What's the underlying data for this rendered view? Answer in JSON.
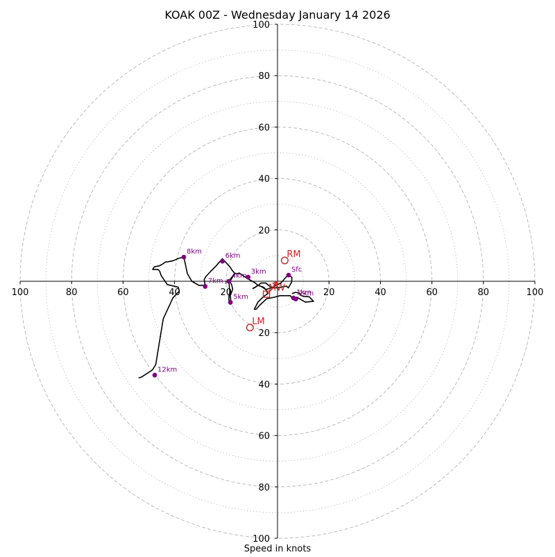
{
  "chart_data": {
    "type": "hodograph",
    "title": "KOAK 00Z - Wednesday January 14 2026",
    "xlabel": "Speed in knots",
    "ylabel": "",
    "range": [
      -100,
      100
    ],
    "ring_major": [
      20,
      40,
      60,
      80,
      100
    ],
    "ring_minor": [
      10,
      30,
      50,
      70,
      90
    ],
    "x_tick_values": [
      -100,
      -80,
      -60,
      -40,
      -20,
      20,
      40,
      60,
      80,
      100
    ],
    "x_tick_labels": [
      "100",
      "80",
      "60",
      "40",
      "20",
      "20",
      "40",
      "60",
      "80",
      "100"
    ],
    "y_tick_values": [
      100,
      80,
      60,
      40,
      20,
      -20,
      -40,
      -60,
      -80,
      -100
    ],
    "y_tick_labels": [
      "100",
      "80",
      "60",
      "40",
      "20",
      "20",
      "40",
      "60",
      "80",
      "100"
    ],
    "grid": "dashed rings",
    "trace_color": "#000000",
    "height_color": "#800080",
    "storm_color": "#cc2222",
    "ring_color": "#bbbbbb",
    "trace": [
      [
        5.6,
        -4.8
      ],
      [
        7.1,
        -4.3
      ],
      [
        8.6,
        -4.6
      ],
      [
        9.1,
        -5.5
      ],
      [
        10.2,
        -5.9
      ],
      [
        12.3,
        -6.0
      ],
      [
        14,
        -7.8
      ],
      [
        10.8,
        -8.1
      ],
      [
        7.5,
        -6.2
      ],
      [
        5.5,
        -6.4
      ],
      [
        5.0,
        -5.6
      ],
      [
        2.8,
        -5.6
      ],
      [
        1.0,
        -5.6
      ],
      [
        -1.2,
        -6.2
      ],
      [
        -4.2,
        -6.8
      ],
      [
        -5.6,
        -8.1
      ],
      [
        -6.8,
        -9.2
      ],
      [
        -8.3,
        -10.9
      ],
      [
        -9.0,
        -10.9
      ],
      [
        -7.6,
        -8.1
      ],
      [
        -5.5,
        -6.0
      ],
      [
        -3.8,
        -4.8
      ],
      [
        -4.5,
        -3.2
      ],
      [
        -5.4,
        -2.3
      ],
      [
        -7.8,
        -1.6
      ],
      [
        -8.5,
        -2.3
      ],
      [
        -9.6,
        -2.8
      ],
      [
        -7.5,
        -1.6
      ],
      [
        -6.4,
        -0.7
      ],
      [
        -4.5,
        -0.7
      ],
      [
        -3.0,
        -2.0
      ],
      [
        -1.3,
        -2.6
      ],
      [
        1.0,
        -2.4
      ],
      [
        3.5,
        -1.9
      ],
      [
        4.2,
        -2.6
      ],
      [
        5.5,
        -0.3
      ],
      [
        5.6,
        1.5
      ],
      [
        4.3,
        2.4
      ],
      [
        3.3,
        1.6
      ],
      [
        1.3,
        -0.7
      ],
      [
        -0.5,
        -1.5
      ],
      [
        -2.5,
        -2.6
      ],
      [
        -4.5,
        -3.2
      ],
      [
        -6.4,
        -2.0
      ],
      [
        -7.6,
        -1.6
      ],
      [
        -8.6,
        -0.7
      ],
      [
        -11.2,
        0.8
      ],
      [
        -12.5,
        1.6
      ],
      [
        -14.9,
        3.2
      ],
      [
        -15.8,
        2.8
      ],
      [
        -16.7,
        3.2
      ],
      [
        -17.3,
        1.9
      ],
      [
        -18.1,
        0.6
      ],
      [
        -18.3,
        -0.4
      ],
      [
        -17.8,
        -1.4
      ],
      [
        -17.4,
        -3.1
      ],
      [
        -18.3,
        -5.5
      ],
      [
        -18.1,
        -8.0
      ],
      [
        -18.3,
        -8.9
      ],
      [
        -18.9,
        -7.4
      ],
      [
        -18.8,
        -5.6
      ],
      [
        -18.5,
        -4.2
      ],
      [
        -18.7,
        -2.4
      ],
      [
        -18.8,
        -1.0
      ],
      [
        -18.9,
        0.0
      ],
      [
        -17.8,
        1.5
      ],
      [
        -16.5,
        3.0
      ],
      [
        -17.5,
        4.1
      ],
      [
        -18.5,
        5.6
      ],
      [
        -19.5,
        6.7
      ],
      [
        -21.4,
        8.8
      ],
      [
        -22.8,
        7.2
      ],
      [
        -24.2,
        5.6
      ],
      [
        -25.9,
        3.9
      ],
      [
        -27.8,
        1.9
      ],
      [
        -28.5,
        0.7
      ],
      [
        -28.1,
        -1.5
      ],
      [
        -30.5,
        -1.6
      ],
      [
        -33.3,
        0.0
      ],
      [
        -35.0,
        3.0
      ],
      [
        -36.4,
        9.4
      ],
      [
        -38.5,
        8.9
      ],
      [
        -40.5,
        8.0
      ],
      [
        -42.5,
        7.6
      ],
      [
        -43.5,
        7.5
      ],
      [
        -44.8,
        6.6
      ],
      [
        -45.9,
        6.0
      ],
      [
        -47.9,
        5.6
      ],
      [
        -48.5,
        4.6
      ],
      [
        -46.5,
        4.6
      ],
      [
        -45.8,
        4.0
      ],
      [
        -45.2,
        2.2
      ],
      [
        -42.8,
        -1.3
      ],
      [
        -38.6,
        -2.3
      ],
      [
        -38.1,
        -3.8
      ],
      [
        -40.6,
        -6.4
      ],
      [
        -44.4,
        -14.6
      ],
      [
        -47.3,
        -32.4
      ],
      [
        -48.6,
        -34.5
      ],
      [
        -50.9,
        -36.0
      ],
      [
        -52.9,
        -37.3
      ],
      [
        -54.0,
        -37.6
      ]
    ],
    "heights": [
      {
        "label": "Sfc",
        "u": 4.3,
        "v": 2.4
      },
      {
        "label": "1km",
        "u": 6.2,
        "v": -6.5
      },
      {
        "label": "2km",
        "u": 7.1,
        "v": -6.9
      },
      {
        "label": "3km",
        "u": -11.4,
        "v": 1.6
      },
      {
        "label": "4km",
        "u": -18.9,
        "v": 0.0
      },
      {
        "label": "5km",
        "u": -18.3,
        "v": -8.2
      },
      {
        "label": "6km",
        "u": -21.4,
        "v": 7.8
      },
      {
        "label": "7km",
        "u": -28.1,
        "v": -2.0
      },
      {
        "label": "8km",
        "u": -36.4,
        "v": 9.4
      },
      {
        "label": "12km",
        "u": -47.7,
        "v": -36.5
      }
    ],
    "storm_motions": [
      {
        "label": "RM",
        "u": 2.8,
        "v": 8.1
      },
      {
        "label": "LM",
        "u": -10.7,
        "v": -18.0
      },
      {
        "label": "MW",
        "u": -4.3,
        "v": -5.0
      }
    ],
    "mean_wind_arrow": {
      "from": [
        0.0,
        0.0
      ],
      "to": [
        -3.8,
        -5.0
      ]
    }
  }
}
